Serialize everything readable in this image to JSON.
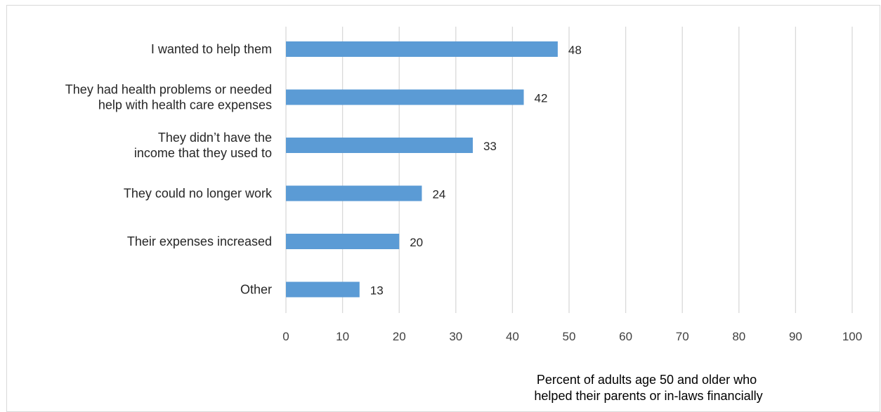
{
  "chart_data": {
    "type": "bar",
    "orientation": "horizontal",
    "categories": [
      [
        "I wanted to help them"
      ],
      [
        "They had health problems or needed",
        "help with health care expenses"
      ],
      [
        "They didn’t have the",
        "income that they used to"
      ],
      [
        "They could no longer work"
      ],
      [
        "Their expenses increased"
      ],
      [
        "Other"
      ]
    ],
    "values": [
      48,
      42,
      33,
      24,
      20,
      13
    ],
    "xlim": [
      0,
      100
    ],
    "xticks": [
      0,
      10,
      20,
      30,
      40,
      50,
      60,
      70,
      80,
      90,
      100
    ],
    "xlabel": [
      "Percent of adults age 50 and older who",
      "helped their parents or in-laws financially"
    ],
    "ylabel": "",
    "title": "",
    "grid": true,
    "data_labels": true,
    "bar_color": "#5b9bd5",
    "grid_color": "#d9d9d9"
  }
}
